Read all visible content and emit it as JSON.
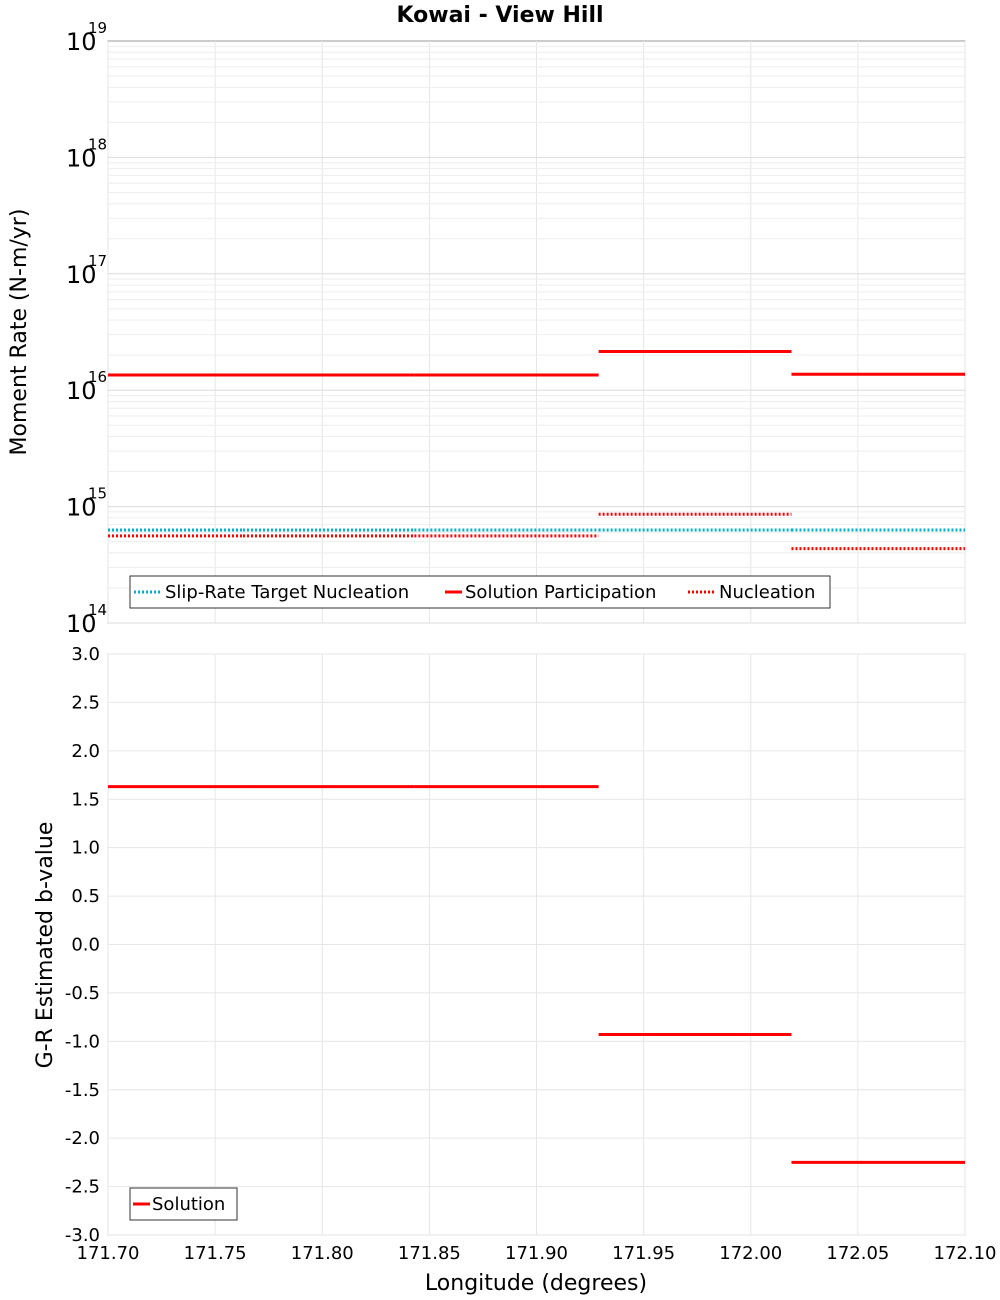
{
  "chart_data": [
    {
      "type": "line",
      "title": "Kowai - View Hill",
      "xlabel": "",
      "ylabel": "Moment Rate (N-m/yr)",
      "yscale": "log",
      "xlim": [
        171.7,
        172.1
      ],
      "ylim_exponents": [
        14,
        19
      ],
      "ytick_base": "10",
      "ytick_exponents": [
        "14",
        "15",
        "16",
        "17",
        "18",
        "19"
      ],
      "series": [
        {
          "name": "Slip-Rate Target Nucleation",
          "color": "#00b0c8",
          "style": "dotted",
          "segments": [
            {
              "x": [
                171.7,
                171.763
              ],
              "y": 630000000000000.0
            },
            {
              "x": [
                171.763,
                171.843
              ],
              "y": 630000000000000.0
            },
            {
              "x": [
                171.843,
                171.929
              ],
              "y": 630000000000000.0
            },
            {
              "x": [
                171.929,
                172.019
              ],
              "y": 630000000000000.0
            },
            {
              "x": [
                172.019,
                172.1
              ],
              "y": 630000000000000.0
            }
          ]
        },
        {
          "name": "Solution Participation",
          "color": "#ff0000",
          "style": "solid",
          "segments": [
            {
              "x": [
                171.7,
                171.763
              ],
              "y": 1.35e+16
            },
            {
              "x": [
                171.763,
                171.843
              ],
              "y": 1.35e+16
            },
            {
              "x": [
                171.843,
                171.929
              ],
              "y": 1.35e+16
            },
            {
              "x": [
                171.929,
                172.019
              ],
              "y": 2.15e+16
            },
            {
              "x": [
                172.019,
                172.1
              ],
              "y": 1.37e+16
            }
          ]
        },
        {
          "name": "Nucleation",
          "color": "#ff0000",
          "style": "dotted",
          "segments": [
            {
              "x": [
                171.7,
                171.763
              ],
              "y": 560000000000000.0
            },
            {
              "x": [
                171.763,
                171.843
              ],
              "y": 560000000000000.0
            },
            {
              "x": [
                171.843,
                171.929
              ],
              "y": 560000000000000.0
            },
            {
              "x": [
                171.929,
                172.019
              ],
              "y": 860000000000000.0
            },
            {
              "x": [
                172.019,
                172.1
              ],
              "y": 435000000000000.0
            }
          ]
        }
      ],
      "legend": [
        "Slip-Rate Target Nucleation",
        "Solution Participation",
        "Nucleation"
      ],
      "legend_position": "bottom-left"
    },
    {
      "type": "line",
      "title": "",
      "xlabel": "Longitude (degrees)",
      "ylabel": "G-R Estimated b-value",
      "xlim": [
        171.7,
        172.1
      ],
      "ylim": [
        -3.0,
        3.0
      ],
      "xticks": [
        "171.70",
        "171.75",
        "171.80",
        "171.85",
        "171.90",
        "171.95",
        "172.00",
        "172.05",
        "172.10"
      ],
      "yticks": [
        "3.0",
        "2.5",
        "2.0",
        "1.5",
        "1.0",
        "0.5",
        "0.0",
        "-0.5",
        "-1.0",
        "-1.5",
        "-2.0",
        "-2.5",
        "-3.0"
      ],
      "series": [
        {
          "name": "Solution",
          "color": "#ff0000",
          "style": "solid",
          "segments": [
            {
              "x": [
                171.7,
                171.763
              ],
              "y": 1.63
            },
            {
              "x": [
                171.763,
                171.843
              ],
              "y": 1.63
            },
            {
              "x": [
                171.843,
                171.929
              ],
              "y": 1.63
            },
            {
              "x": [
                171.929,
                172.019
              ],
              "y": -0.93
            },
            {
              "x": [
                172.019,
                172.1
              ],
              "y": -2.25
            }
          ]
        }
      ],
      "legend": [
        "Solution"
      ],
      "legend_position": "bottom-left"
    }
  ]
}
